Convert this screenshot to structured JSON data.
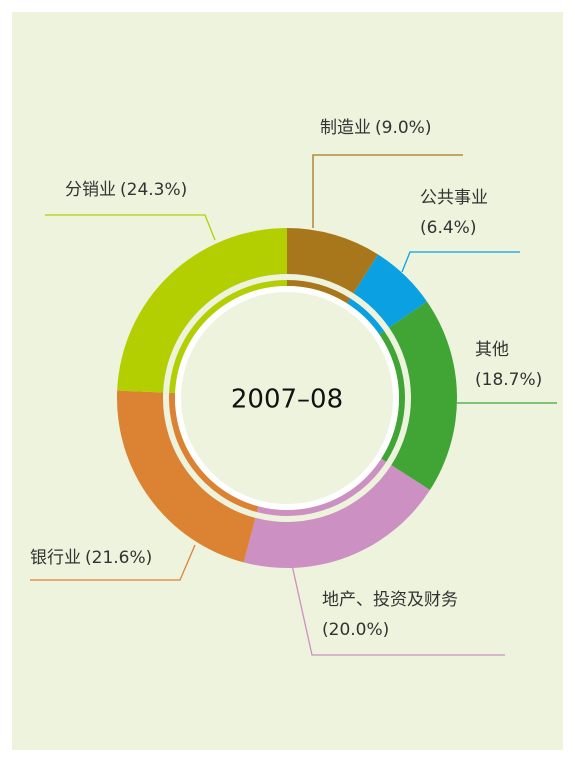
{
  "chart_data": {
    "type": "donut",
    "title": "2007–08",
    "categories": [
      "制造业",
      "公共事业",
      "其他",
      "地产、投资及财务",
      "银行业",
      "分销业"
    ],
    "values": [
      9.0,
      6.4,
      18.7,
      20.0,
      21.6,
      24.3
    ],
    "value_labels": [
      "(9.0%)",
      "(6.4%)",
      "(18.7%)",
      "(20.0%)",
      "(21.6%)",
      "(24.3%)"
    ],
    "colors": [
      "#a8771b",
      "#0ba0e2",
      "#40a535",
      "#cc90c2",
      "#dc8233",
      "#b3cf02"
    ]
  }
}
